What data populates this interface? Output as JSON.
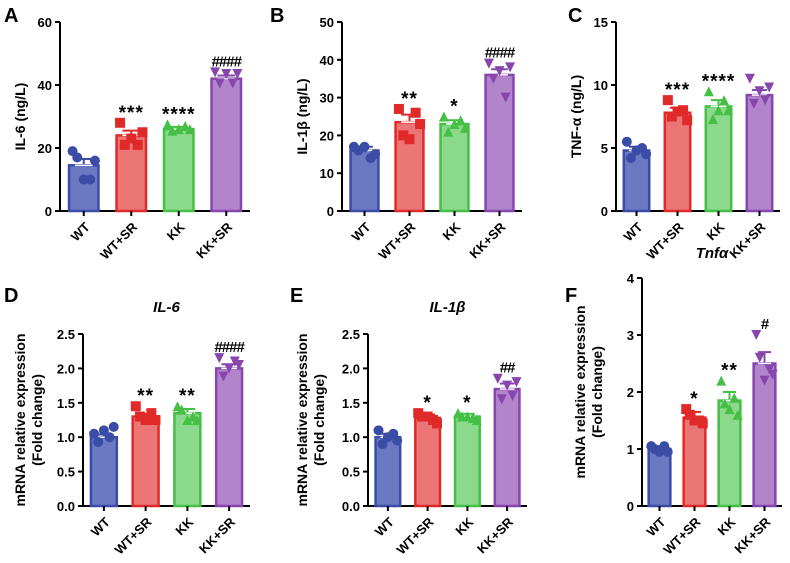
{
  "groups": [
    "WT",
    "WT+SR",
    "KK",
    "KK+SR"
  ],
  "colors": {
    "stroke": [
      "#3a4ca6",
      "#e02a2a",
      "#45bf45",
      "#8746ad"
    ],
    "fill": [
      "#6b79c2",
      "#ec7676",
      "#8bd98b",
      "#b184cc"
    ]
  },
  "markers": [
    "circle",
    "square",
    "triangle-up",
    "triangle-down"
  ],
  "chart_data": [
    {
      "panel": "A",
      "type": "bar",
      "title": "",
      "ylabel": "IL-6 (ng/L)",
      "ylim": [
        0,
        60
      ],
      "yticks": [
        "0",
        "20",
        "40",
        "60"
      ],
      "ytickvals": [
        0,
        20,
        40,
        60
      ],
      "values": [
        14.5,
        24,
        26,
        42
      ],
      "errors": [
        2,
        1.5,
        0.7,
        1
      ],
      "points": [
        [
          19,
          16,
          17,
          10,
          10
        ],
        [
          28,
          25,
          21,
          21,
          23
        ],
        [
          27.5,
          26,
          25.5,
          27,
          26
        ],
        [
          44,
          43.5,
          40.5,
          40.5,
          43.5
        ]
      ],
      "annotations": [
        "",
        "***",
        "****",
        "####"
      ]
    },
    {
      "panel": "B",
      "type": "bar",
      "title": "",
      "ylabel": "IL-1β (ng/L)",
      "ylim": [
        0,
        50
      ],
      "yticks": [
        "0",
        "10",
        "20",
        "30",
        "40",
        "50"
      ],
      "ytickvals": [
        0,
        10,
        20,
        30,
        40,
        50
      ],
      "values": [
        16,
        23.5,
        23,
        36
      ],
      "errors": [
        1,
        2,
        1,
        1.5
      ],
      "points": [
        [
          17,
          15,
          16,
          14,
          17
        ],
        [
          27,
          23,
          20,
          26,
          19
        ],
        [
          25,
          22,
          21,
          24,
          23
        ],
        [
          39,
          38,
          35,
          30,
          37
        ]
      ],
      "annotations": [
        "",
        "**",
        "*",
        "####"
      ]
    },
    {
      "panel": "C",
      "type": "bar",
      "title": "",
      "ylabel": "TNF-α (ng/L)",
      "ylim": [
        0,
        15
      ],
      "yticks": [
        "0",
        "5",
        "10",
        "15"
      ],
      "ytickvals": [
        0,
        5,
        10,
        15
      ],
      "values": [
        4.8,
        7.8,
        8.3,
        9.2
      ],
      "errors": [
        0.3,
        0.4,
        0.5,
        0.4
      ],
      "points": [
        [
          5.5,
          4.5,
          4.2,
          5,
          4.8
        ],
        [
          8.8,
          7.2,
          7.5,
          8,
          7.9
        ],
        [
          9.5,
          8,
          7.3,
          8.8,
          8
        ],
        [
          10.5,
          9.8,
          8.5,
          8.8,
          9.5
        ]
      ],
      "annotations": [
        "",
        "***",
        "****",
        ""
      ]
    },
    {
      "panel": "D",
      "type": "bar",
      "title": "IL-6",
      "ylabel": "mRNA relative expression\n(Fold change)",
      "ylim": [
        0,
        2.5
      ],
      "yticks": [
        "0.0",
        "0.5",
        "1.0",
        "1.5",
        "2.0",
        "2.5"
      ],
      "ytickvals": [
        0,
        0.5,
        1,
        1.5,
        2,
        2.5
      ],
      "values": [
        1.0,
        1.3,
        1.35,
        2.0
      ],
      "errors": [
        0.04,
        0.04,
        0.06,
        0.06
      ],
      "points": [
        [
          1.05,
          1.15,
          0.93,
          1.0,
          1.1
        ],
        [
          1.45,
          1.25,
          1.3,
          1.35,
          1.25
        ],
        [
          1.45,
          1.25,
          1.4,
          1.3,
          1.25
        ],
        [
          2.15,
          2.05,
          1.88,
          2.1,
          2.0
        ]
      ],
      "annotations": [
        "",
        "**",
        "**",
        "####"
      ]
    },
    {
      "panel": "E",
      "type": "bar",
      "title": "IL-1β",
      "ylabel": "mRNA relative expression\n(Fold change)",
      "ylim": [
        0,
        2.5
      ],
      "yticks": [
        "0.0",
        "0.5",
        "1.0",
        "1.5",
        "2.0",
        "2.5"
      ],
      "ytickvals": [
        0,
        0.5,
        1,
        1.5,
        2,
        2.5
      ],
      "values": [
        1.0,
        1.28,
        1.3,
        1.7
      ],
      "errors": [
        0.05,
        0.05,
        0.04,
        0.08
      ],
      "points": [
        [
          1.1,
          0.95,
          0.9,
          1.05,
          1.0
        ],
        [
          1.35,
          1.2,
          1.3,
          1.25,
          1.3
        ],
        [
          1.35,
          1.25,
          1.3,
          1.28,
          1.3
        ],
        [
          1.85,
          1.8,
          1.55,
          1.6,
          1.75
        ]
      ],
      "annotations": [
        "",
        "*",
        "*",
        "##"
      ]
    },
    {
      "panel": "F",
      "type": "bar",
      "title": "Tnfα",
      "ylabel": "mRNA relative expression\n(Fold change)",
      "ylim": [
        0,
        4
      ],
      "yticks": [
        "0",
        "1",
        "2",
        "3",
        "4"
      ],
      "ytickvals": [
        0,
        1,
        2,
        3,
        4
      ],
      "values": [
        1.0,
        1.55,
        1.85,
        2.5
      ],
      "errors": [
        0.05,
        0.1,
        0.15,
        0.2
      ],
      "points": [
        [
          1.05,
          0.95,
          1.0,
          1.05,
          0.95
        ],
        [
          1.7,
          1.45,
          1.6,
          1.5,
          1.5
        ],
        [
          2.2,
          1.6,
          1.8,
          1.9,
          1.7
        ],
        [
          3.0,
          2.3,
          2.6,
          2.4,
          2.2
        ]
      ],
      "annotations": [
        "",
        "*",
        "**",
        "#"
      ]
    }
  ]
}
